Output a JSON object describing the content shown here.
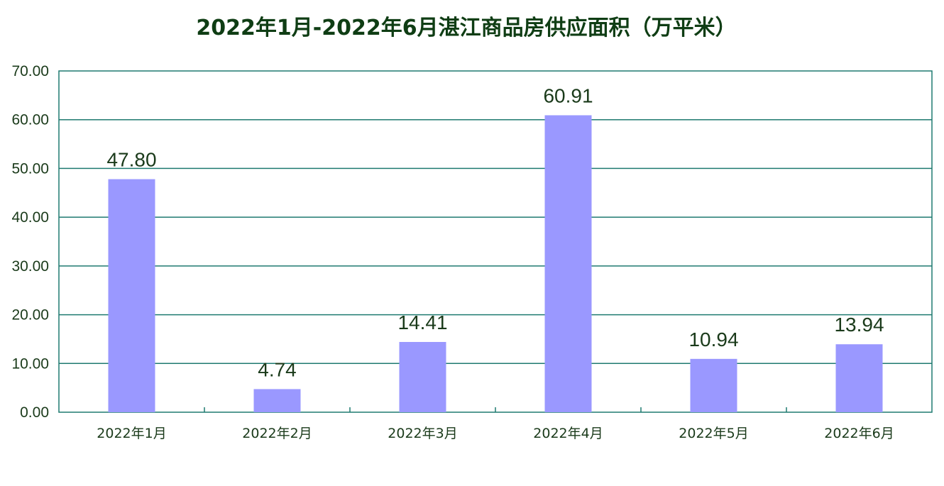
{
  "chart_data": {
    "type": "bar",
    "title": "2022年1月-2022年6月湛江商品房供应面积（万平米）",
    "categories": [
      "2022年1月",
      "2022年2月",
      "2022年3月",
      "2022年4月",
      "2022年5月",
      "2022年6月"
    ],
    "values": [
      47.8,
      4.74,
      14.41,
      60.91,
      10.94,
      13.94
    ],
    "data_labels": [
      "47.80",
      "4.74",
      "14.41",
      "60.91",
      "10.94",
      "13.94"
    ],
    "y_ticks": [
      "0.00",
      "10.00",
      "20.00",
      "30.00",
      "40.00",
      "50.00",
      "60.00",
      "70.00"
    ],
    "ylim": [
      0,
      70
    ],
    "grid": true,
    "legend": "none",
    "colors": {
      "bar": "#9a98ff",
      "grid": "#1f7a70",
      "axis": "#1f7a70",
      "title": "#0f3d14"
    }
  }
}
